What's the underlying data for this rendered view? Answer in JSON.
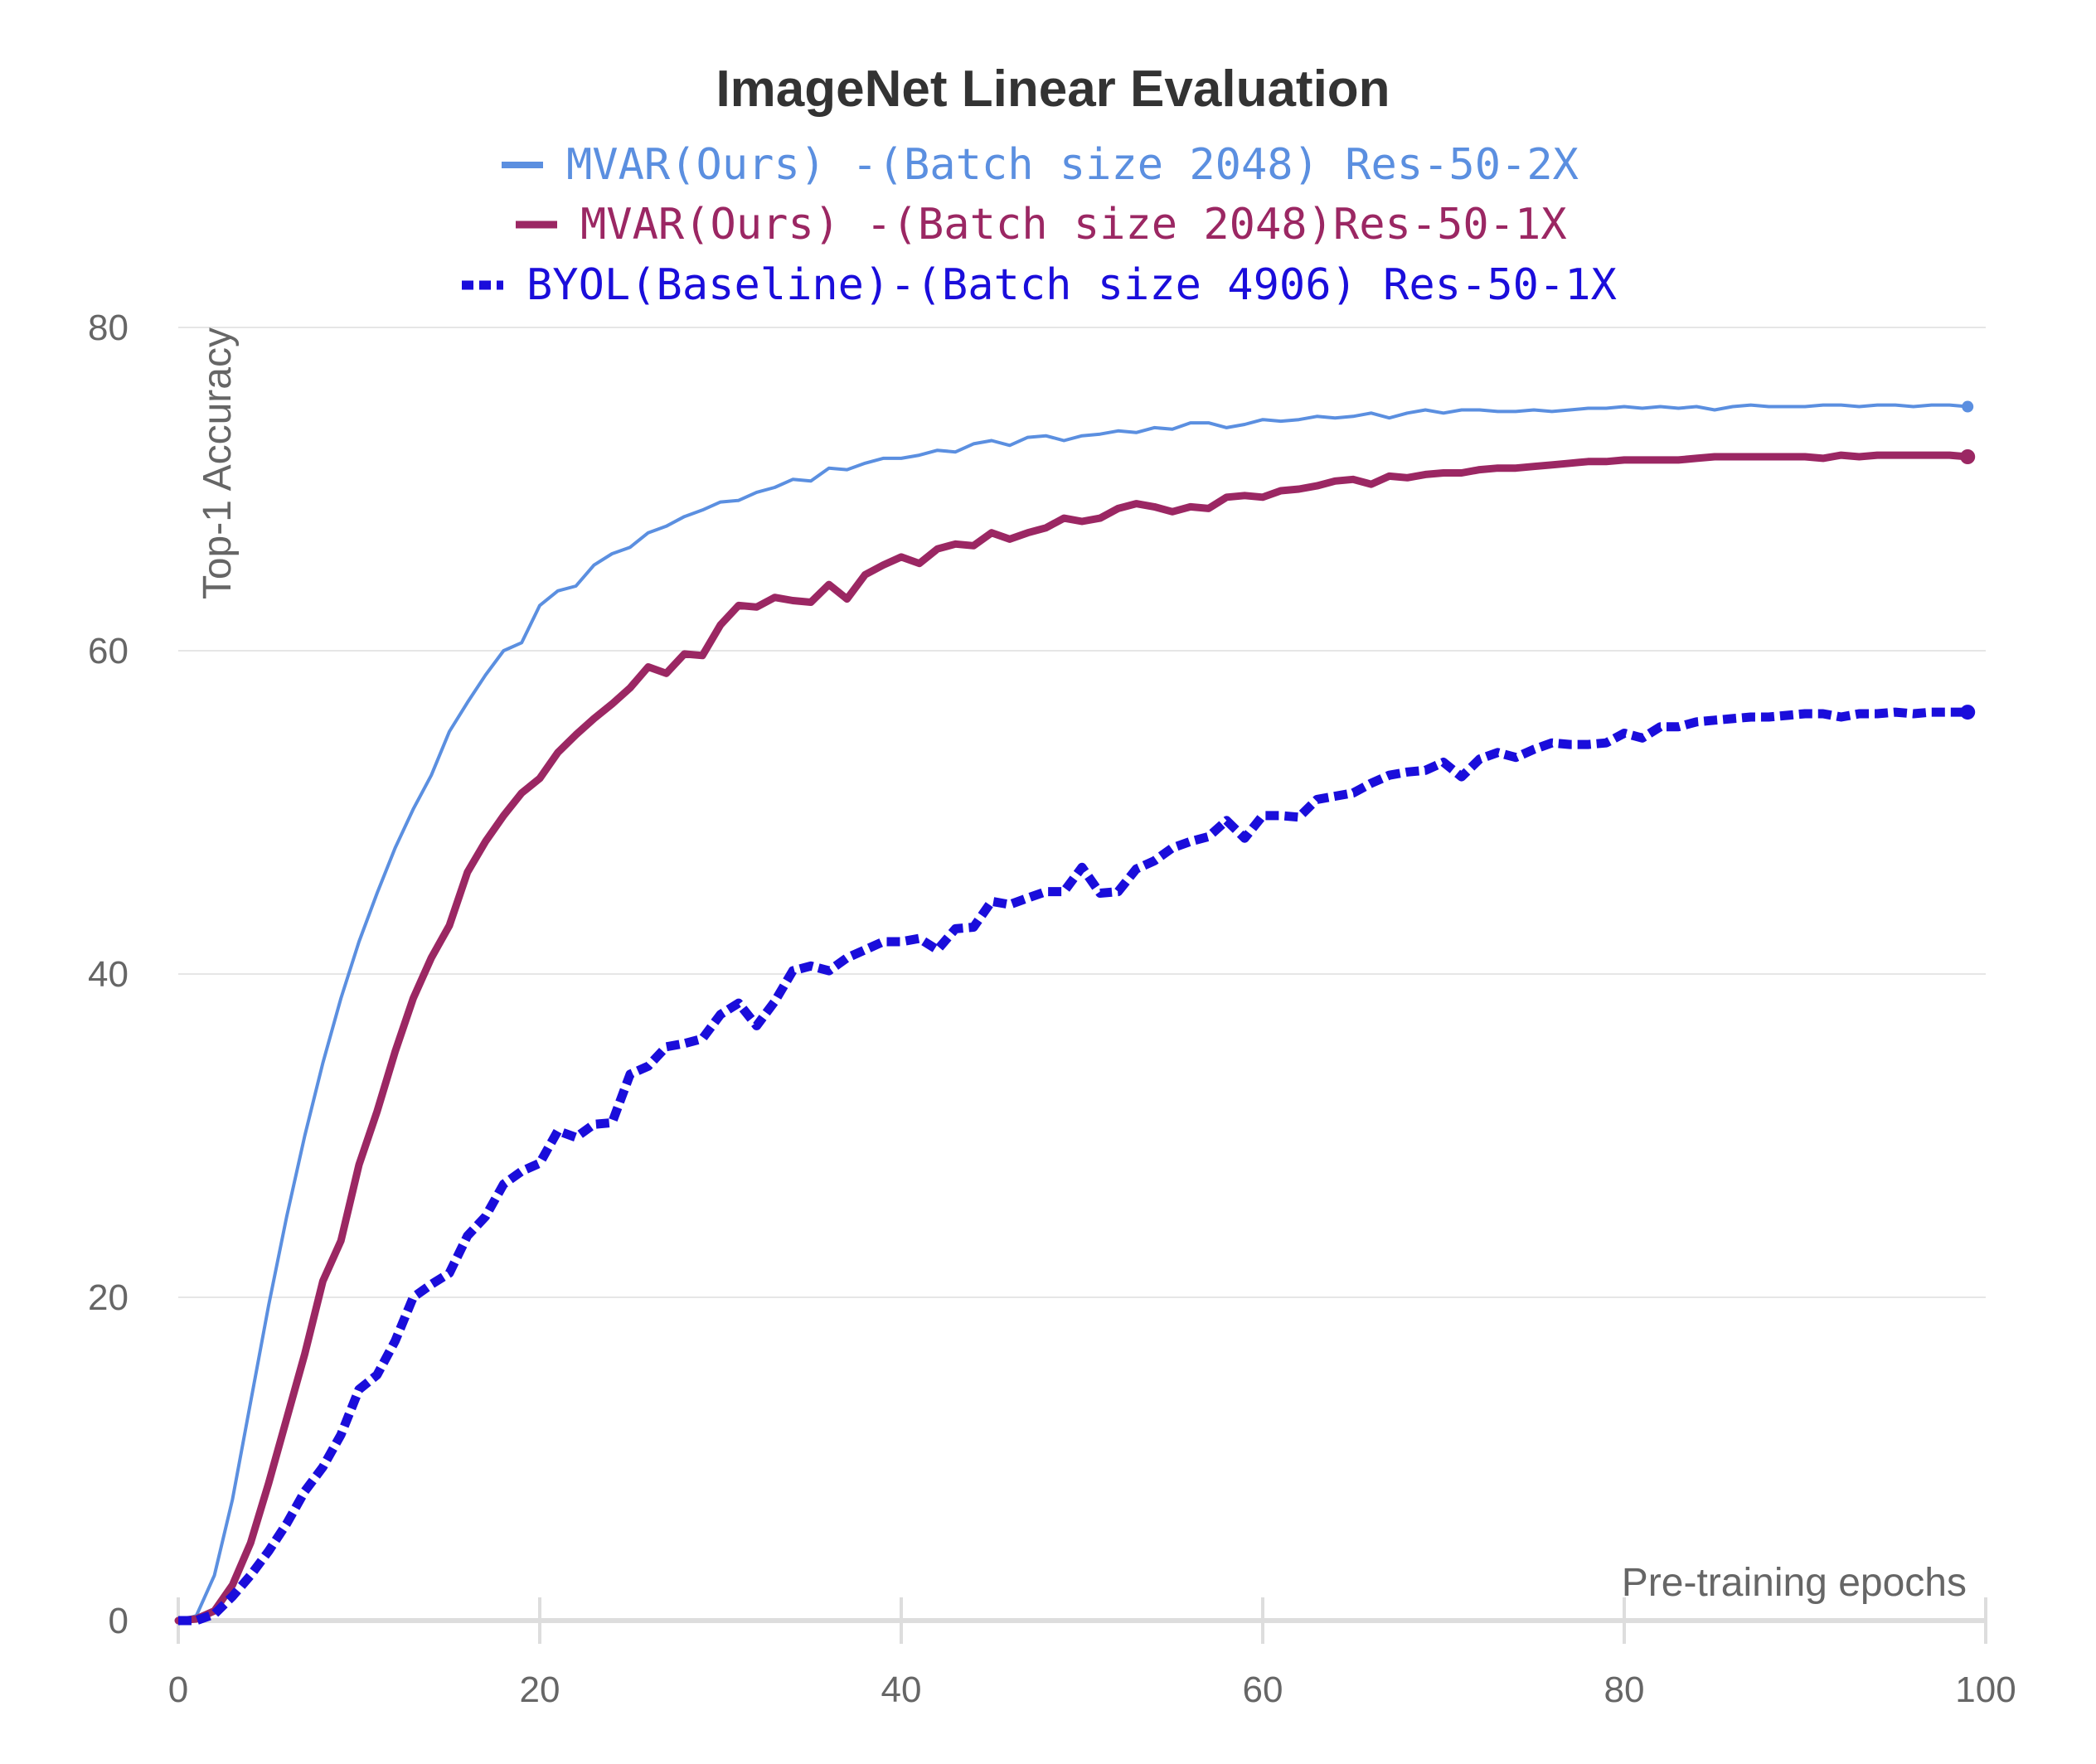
{
  "chart_data": {
    "type": "line",
    "title": "ImageNet Linear Evaluation",
    "xlabel": "Pre-training epochs",
    "ylabel": "Top-1 Accuracy",
    "xlim": [
      0,
      100
    ],
    "ylim": [
      0,
      80
    ],
    "x_ticks": [
      "0",
      "20",
      "40",
      "60",
      "80",
      "100"
    ],
    "y_ticks": [
      "0",
      "20",
      "40",
      "60",
      "80"
    ],
    "grid": true,
    "legend_position": "top-center",
    "series": [
      {
        "name": "MVAR(Ours) -(Batch size 2048) Res-50-2X",
        "color": "#5b8fe0",
        "style": "solid-thin",
        "points": [
          [
            0,
            0
          ],
          [
            1,
            0.3
          ],
          [
            2,
            2.8
          ],
          [
            3,
            7.5
          ],
          [
            4,
            13.5
          ],
          [
            5,
            19.5
          ],
          [
            6,
            25
          ],
          [
            7,
            30
          ],
          [
            8,
            34.5
          ],
          [
            9,
            38.5
          ],
          [
            10,
            42
          ],
          [
            11,
            45
          ],
          [
            12,
            47.8
          ],
          [
            13,
            50.2
          ],
          [
            14,
            52.3
          ],
          [
            15,
            55
          ],
          [
            16,
            56.8
          ],
          [
            17,
            58.5
          ],
          [
            18,
            60
          ],
          [
            19,
            60.5
          ],
          [
            20,
            62.8
          ],
          [
            21,
            63.7
          ],
          [
            22,
            64
          ],
          [
            23,
            65.3
          ],
          [
            24,
            66
          ],
          [
            25,
            66.4
          ],
          [
            26,
            67.3
          ],
          [
            27,
            67.7
          ],
          [
            28,
            68.3
          ],
          [
            29,
            68.7
          ],
          [
            30,
            69.2
          ],
          [
            31,
            69.3
          ],
          [
            32,
            69.8
          ],
          [
            33,
            70.1
          ],
          [
            34,
            70.6
          ],
          [
            35,
            70.5
          ],
          [
            36,
            71.3
          ],
          [
            37,
            71.2
          ],
          [
            38,
            71.6
          ],
          [
            39,
            71.9
          ],
          [
            40,
            71.9
          ],
          [
            41,
            72.1
          ],
          [
            42,
            72.4
          ],
          [
            43,
            72.3
          ],
          [
            44,
            72.8
          ],
          [
            45,
            73
          ],
          [
            46,
            72.7
          ],
          [
            47,
            73.2
          ],
          [
            48,
            73.3
          ],
          [
            49,
            73
          ],
          [
            50,
            73.3
          ],
          [
            51,
            73.4
          ],
          [
            52,
            73.6
          ],
          [
            53,
            73.5
          ],
          [
            54,
            73.8
          ],
          [
            55,
            73.7
          ],
          [
            56,
            74.1
          ],
          [
            57,
            74.1
          ],
          [
            58,
            73.8
          ],
          [
            59,
            74
          ],
          [
            60,
            74.3
          ],
          [
            61,
            74.2
          ],
          [
            62,
            74.3
          ],
          [
            63,
            74.5
          ],
          [
            64,
            74.4
          ],
          [
            65,
            74.5
          ],
          [
            66,
            74.7
          ],
          [
            67,
            74.4
          ],
          [
            68,
            74.7
          ],
          [
            69,
            74.9
          ],
          [
            70,
            74.7
          ],
          [
            71,
            74.9
          ],
          [
            72,
            74.9
          ],
          [
            73,
            74.8
          ],
          [
            74,
            74.8
          ],
          [
            75,
            74.9
          ],
          [
            76,
            74.8
          ],
          [
            77,
            74.9
          ],
          [
            78,
            75
          ],
          [
            79,
            75
          ],
          [
            80,
            75.1
          ],
          [
            81,
            75
          ],
          [
            82,
            75.1
          ],
          [
            83,
            75
          ],
          [
            84,
            75.1
          ],
          [
            85,
            74.9
          ],
          [
            86,
            75.1
          ],
          [
            87,
            75.2
          ],
          [
            88,
            75.1
          ],
          [
            89,
            75.1
          ],
          [
            90,
            75.1
          ],
          [
            91,
            75.2
          ],
          [
            92,
            75.2
          ],
          [
            93,
            75.1
          ],
          [
            94,
            75.2
          ],
          [
            95,
            75.2
          ],
          [
            96,
            75.1
          ],
          [
            97,
            75.2
          ],
          [
            98,
            75.2
          ],
          [
            99,
            75.1
          ]
        ]
      },
      {
        "name": "MVAR(Ours) -(Batch size 2048)Res-50-1X",
        "color": "#9b2763",
        "style": "solid-thick",
        "points": [
          [
            0,
            0
          ],
          [
            1,
            0.1
          ],
          [
            2,
            0.6
          ],
          [
            3,
            2.2
          ],
          [
            4,
            4.8
          ],
          [
            5,
            8.5
          ],
          [
            6,
            12.5
          ],
          [
            7,
            16.5
          ],
          [
            8,
            21
          ],
          [
            9,
            23.5
          ],
          [
            10,
            28.2
          ],
          [
            11,
            31.5
          ],
          [
            12,
            35.2
          ],
          [
            13,
            38.5
          ],
          [
            14,
            41
          ],
          [
            15,
            43
          ],
          [
            16,
            46.3
          ],
          [
            17,
            48.2
          ],
          [
            18,
            49.8
          ],
          [
            19,
            51.2
          ],
          [
            20,
            52.1
          ],
          [
            21,
            53.7
          ],
          [
            22,
            54.8
          ],
          [
            23,
            55.8
          ],
          [
            24,
            56.7
          ],
          [
            25,
            57.7
          ],
          [
            26,
            59
          ],
          [
            27,
            58.6
          ],
          [
            28,
            59.8
          ],
          [
            29,
            59.7
          ],
          [
            30,
            61.6
          ],
          [
            31,
            62.8
          ],
          [
            32,
            62.7
          ],
          [
            33,
            63.3
          ],
          [
            34,
            63.1
          ],
          [
            35,
            63
          ],
          [
            36,
            64.1
          ],
          [
            37,
            63.2
          ],
          [
            38,
            64.7
          ],
          [
            39,
            65.3
          ],
          [
            40,
            65.8
          ],
          [
            41,
            65.4
          ],
          [
            42,
            66.3
          ],
          [
            43,
            66.6
          ],
          [
            44,
            66.5
          ],
          [
            45,
            67.3
          ],
          [
            46,
            66.9
          ],
          [
            47,
            67.3
          ],
          [
            48,
            67.6
          ],
          [
            49,
            68.2
          ],
          [
            50,
            68
          ],
          [
            51,
            68.2
          ],
          [
            52,
            68.8
          ],
          [
            53,
            69.1
          ],
          [
            54,
            68.9
          ],
          [
            55,
            68.6
          ],
          [
            56,
            68.9
          ],
          [
            57,
            68.8
          ],
          [
            58,
            69.5
          ],
          [
            59,
            69.6
          ],
          [
            60,
            69.5
          ],
          [
            61,
            69.9
          ],
          [
            62,
            70
          ],
          [
            63,
            70.2
          ],
          [
            64,
            70.5
          ],
          [
            65,
            70.6
          ],
          [
            66,
            70.3
          ],
          [
            67,
            70.8
          ],
          [
            68,
            70.7
          ],
          [
            69,
            70.9
          ],
          [
            70,
            71
          ],
          [
            71,
            71
          ],
          [
            72,
            71.2
          ],
          [
            73,
            71.3
          ],
          [
            74,
            71.3
          ],
          [
            75,
            71.4
          ],
          [
            76,
            71.5
          ],
          [
            77,
            71.6
          ],
          [
            78,
            71.7
          ],
          [
            79,
            71.7
          ],
          [
            80,
            71.8
          ],
          [
            81,
            71.8
          ],
          [
            82,
            71.8
          ],
          [
            83,
            71.8
          ],
          [
            84,
            71.9
          ],
          [
            85,
            72
          ],
          [
            86,
            72
          ],
          [
            87,
            72
          ],
          [
            88,
            72
          ],
          [
            89,
            72
          ],
          [
            90,
            72
          ],
          [
            91,
            71.9
          ],
          [
            92,
            72.1
          ],
          [
            93,
            72
          ],
          [
            94,
            72.1
          ],
          [
            95,
            72.1
          ],
          [
            96,
            72.1
          ],
          [
            97,
            72.1
          ],
          [
            98,
            72.1
          ],
          [
            99,
            72
          ]
        ]
      },
      {
        "name": "BYOL(Baseline)-(Batch size 4906) Res-50-1X",
        "color": "#1a0ddb",
        "style": "dashed-thick",
        "points": [
          [
            0,
            0
          ],
          [
            1,
            0
          ],
          [
            2,
            0.4
          ],
          [
            3,
            1.5
          ],
          [
            4,
            2.8
          ],
          [
            5,
            4.3
          ],
          [
            6,
            6
          ],
          [
            7,
            8
          ],
          [
            8,
            9.5
          ],
          [
            9,
            11.5
          ],
          [
            10,
            14.3
          ],
          [
            11,
            15.2
          ],
          [
            12,
            17.3
          ],
          [
            13,
            20
          ],
          [
            14,
            20.8
          ],
          [
            15,
            21.5
          ],
          [
            16,
            23.8
          ],
          [
            17,
            25
          ],
          [
            18,
            27
          ],
          [
            19,
            27.8
          ],
          [
            20,
            28.3
          ],
          [
            21,
            30.3
          ],
          [
            22,
            29.9
          ],
          [
            23,
            30.7
          ],
          [
            24,
            30.8
          ],
          [
            25,
            33.8
          ],
          [
            26,
            34.3
          ],
          [
            27,
            35.5
          ],
          [
            28,
            35.7
          ],
          [
            29,
            36
          ],
          [
            30,
            37.5
          ],
          [
            31,
            38.2
          ],
          [
            32,
            36.8
          ],
          [
            33,
            38.3
          ],
          [
            34,
            40.2
          ],
          [
            35,
            40.5
          ],
          [
            36,
            40.2
          ],
          [
            37,
            41
          ],
          [
            38,
            41.5
          ],
          [
            39,
            42
          ],
          [
            40,
            42
          ],
          [
            41,
            42.2
          ],
          [
            42,
            41.5
          ],
          [
            43,
            42.8
          ],
          [
            44,
            42.9
          ],
          [
            45,
            44.5
          ],
          [
            46,
            44.3
          ],
          [
            47,
            44.7
          ],
          [
            48,
            45.1
          ],
          [
            49,
            45.1
          ],
          [
            50,
            46.6
          ],
          [
            51,
            45
          ],
          [
            52,
            45.1
          ],
          [
            53,
            46.5
          ],
          [
            54,
            47
          ],
          [
            55,
            47.8
          ],
          [
            56,
            48.2
          ],
          [
            57,
            48.5
          ],
          [
            58,
            49.5
          ],
          [
            59,
            48.4
          ],
          [
            60,
            49.8
          ],
          [
            61,
            49.8
          ],
          [
            62,
            49.7
          ],
          [
            63,
            50.8
          ],
          [
            64,
            51
          ],
          [
            65,
            51.2
          ],
          [
            66,
            51.8
          ],
          [
            67,
            52.3
          ],
          [
            68,
            52.5
          ],
          [
            69,
            52.6
          ],
          [
            70,
            53.1
          ],
          [
            71,
            52.2
          ],
          [
            72,
            53.3
          ],
          [
            73,
            53.7
          ],
          [
            74,
            53.4
          ],
          [
            75,
            53.9
          ],
          [
            76,
            54.3
          ],
          [
            77,
            54.2
          ],
          [
            78,
            54.2
          ],
          [
            79,
            54.3
          ],
          [
            80,
            54.9
          ],
          [
            81,
            54.6
          ],
          [
            82,
            55.3
          ],
          [
            83,
            55.3
          ],
          [
            84,
            55.6
          ],
          [
            85,
            55.7
          ],
          [
            86,
            55.8
          ],
          [
            87,
            55.9
          ],
          [
            88,
            55.9
          ],
          [
            89,
            56
          ],
          [
            90,
            56.1
          ],
          [
            91,
            56.1
          ],
          [
            92,
            55.9
          ],
          [
            93,
            56.1
          ],
          [
            94,
            56.1
          ],
          [
            95,
            56.2
          ],
          [
            96,
            56.1
          ],
          [
            97,
            56.2
          ],
          [
            98,
            56.2
          ],
          [
            99,
            56.2
          ]
        ]
      }
    ]
  }
}
